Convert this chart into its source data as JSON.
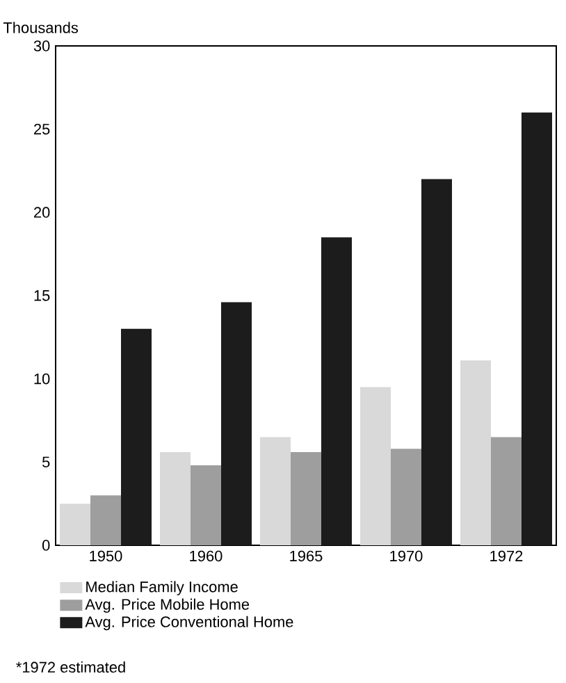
{
  "chart_data": {
    "type": "bar",
    "ylabel": "Thousands",
    "categories": [
      "1950",
      "1960",
      "1965",
      "1970",
      "1972"
    ],
    "series": [
      {
        "name": "Median Family Income",
        "color": "#d9d9d9",
        "values": [
          2.5,
          5.6,
          6.5,
          9.5,
          11.1
        ]
      },
      {
        "name": "Avg. Price Mobile Home",
        "color": "#9e9e9e",
        "values": [
          3.0,
          4.8,
          5.6,
          5.8,
          6.5
        ]
      },
      {
        "name": "Avg. Price Conventional Home",
        "color": "#1c1c1c",
        "values": [
          13.0,
          14.6,
          18.5,
          22.0,
          26.0
        ]
      }
    ],
    "ylim": [
      0,
      30
    ],
    "yticks": [
      0,
      5,
      10,
      15,
      20,
      25,
      30
    ],
    "grid": false,
    "legend": "bottom",
    "annotations": [
      "*1972 estimated"
    ]
  }
}
